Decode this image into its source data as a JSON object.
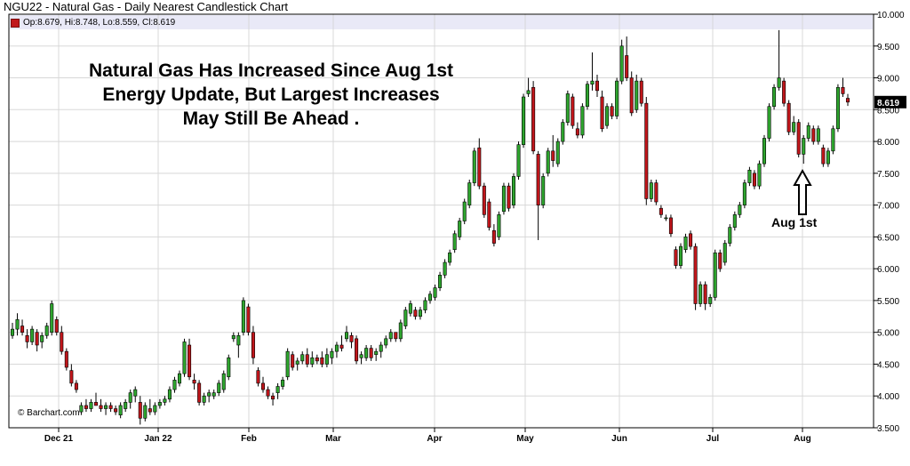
{
  "chart_title": "NGU22 - Natural Gas - Daily Nearest Candlestick Chart",
  "legend_text": "Op:8.679, Hi:8.748, Lo:8.559, Cl:8.619",
  "headline": [
    "Natural Gas Has Increased Since Aug 1st",
    "Energy Update, But Largest Increases",
    "May Still Be Ahead ."
  ],
  "annotation_label": "Aug 1st",
  "credit": "© Barchart.com",
  "last_price_label": "8.619",
  "colors": {
    "up": "#2ea52e",
    "down": "#c0161b",
    "grid": "#d8d8d8",
    "legend_band": "#e9e9f7",
    "price_tag": "#000000"
  },
  "chart_data": {
    "type": "candlestick",
    "title": "NGU22 - Natural Gas - Daily Nearest Candlestick Chart",
    "ylim": [
      3.5,
      10.0
    ],
    "y_ticks": [
      "3.500",
      "4.000",
      "4.500",
      "5.000",
      "5.500",
      "6.000",
      "6.500",
      "7.000",
      "7.500",
      "8.000",
      "8.500",
      "9.000",
      "9.500",
      "10.000"
    ],
    "x_ticks": [
      "Dec 21",
      "Jan 22",
      "Feb",
      "Mar",
      "Apr",
      "May",
      "Jun",
      "Jul",
      "Aug"
    ],
    "grid": true,
    "last": {
      "open": 8.679,
      "high": 8.748,
      "low": 8.559,
      "close": 8.619
    },
    "annotation": {
      "text": "Aug 1st",
      "arrow": "up",
      "date": "2022-08-01"
    },
    "candles": [
      {
        "o": 4.95,
        "h": 5.15,
        "l": 4.9,
        "c": 5.05
      },
      {
        "o": 5.05,
        "h": 5.3,
        "l": 4.95,
        "c": 5.2
      },
      {
        "o": 5.1,
        "h": 5.2,
        "l": 4.95,
        "c": 5.0
      },
      {
        "o": 4.95,
        "h": 5.05,
        "l": 4.75,
        "c": 4.85
      },
      {
        "o": 4.85,
        "h": 5.1,
        "l": 4.8,
        "c": 5.05
      },
      {
        "o": 5.0,
        "h": 5.05,
        "l": 4.7,
        "c": 4.8
      },
      {
        "o": 4.85,
        "h": 5.0,
        "l": 4.75,
        "c": 4.95
      },
      {
        "o": 4.95,
        "h": 5.15,
        "l": 4.9,
        "c": 5.1
      },
      {
        "o": 5.0,
        "h": 5.5,
        "l": 4.95,
        "c": 5.45
      },
      {
        "o": 5.2,
        "h": 5.25,
        "l": 4.95,
        "c": 5.0
      },
      {
        "o": 5.0,
        "h": 5.1,
        "l": 4.65,
        "c": 4.7
      },
      {
        "o": 4.7,
        "h": 4.75,
        "l": 4.4,
        "c": 4.45
      },
      {
        "o": 4.4,
        "h": 4.5,
        "l": 4.15,
        "c": 4.2
      },
      {
        "o": 4.2,
        "h": 4.25,
        "l": 4.05,
        "c": 4.1
      },
      {
        "o": 3.75,
        "h": 3.9,
        "l": 3.7,
        "c": 3.85
      },
      {
        "o": 3.85,
        "h": 3.95,
        "l": 3.75,
        "c": 3.8
      },
      {
        "o": 3.8,
        "h": 3.95,
        "l": 3.75,
        "c": 3.9
      },
      {
        "o": 3.9,
        "h": 4.05,
        "l": 3.85,
        "c": 3.85
      },
      {
        "o": 3.85,
        "h": 3.95,
        "l": 3.75,
        "c": 3.8
      },
      {
        "o": 3.8,
        "h": 3.9,
        "l": 3.7,
        "c": 3.85
      },
      {
        "o": 3.85,
        "h": 3.9,
        "l": 3.75,
        "c": 3.8
      },
      {
        "o": 3.8,
        "h": 3.85,
        "l": 3.7,
        "c": 3.75
      },
      {
        "o": 3.7,
        "h": 3.9,
        "l": 3.65,
        "c": 3.85
      },
      {
        "o": 3.8,
        "h": 3.95,
        "l": 3.75,
        "c": 3.9
      },
      {
        "o": 3.9,
        "h": 4.1,
        "l": 3.8,
        "c": 4.05
      },
      {
        "o": 4.0,
        "h": 4.15,
        "l": 3.9,
        "c": 4.1
      },
      {
        "o": 3.9,
        "h": 4.0,
        "l": 3.55,
        "c": 3.65
      },
      {
        "o": 3.65,
        "h": 3.9,
        "l": 3.6,
        "c": 3.85
      },
      {
        "o": 3.8,
        "h": 3.95,
        "l": 3.7,
        "c": 3.75
      },
      {
        "o": 3.75,
        "h": 3.9,
        "l": 3.7,
        "c": 3.85
      },
      {
        "o": 3.85,
        "h": 3.95,
        "l": 3.8,
        "c": 3.9
      },
      {
        "o": 3.9,
        "h": 4.0,
        "l": 3.85,
        "c": 3.95
      },
      {
        "o": 3.95,
        "h": 4.15,
        "l": 3.9,
        "c": 4.1
      },
      {
        "o": 4.1,
        "h": 4.3,
        "l": 4.05,
        "c": 4.25
      },
      {
        "o": 4.2,
        "h": 4.4,
        "l": 4.15,
        "c": 4.35
      },
      {
        "o": 4.35,
        "h": 4.9,
        "l": 4.3,
        "c": 4.85
      },
      {
        "o": 4.8,
        "h": 4.9,
        "l": 4.25,
        "c": 4.3
      },
      {
        "o": 4.25,
        "h": 4.35,
        "l": 4.1,
        "c": 4.2
      },
      {
        "o": 4.2,
        "h": 4.25,
        "l": 3.85,
        "c": 3.9
      },
      {
        "o": 3.9,
        "h": 4.05,
        "l": 3.85,
        "c": 4.0
      },
      {
        "o": 4.0,
        "h": 4.1,
        "l": 3.9,
        "c": 4.05
      },
      {
        "o": 4.0,
        "h": 4.1,
        "l": 3.95,
        "c": 4.05
      },
      {
        "o": 4.05,
        "h": 4.25,
        "l": 4.0,
        "c": 4.2
      },
      {
        "o": 4.1,
        "h": 4.4,
        "l": 4.05,
        "c": 4.35
      },
      {
        "o": 4.3,
        "h": 4.65,
        "l": 4.25,
        "c": 4.6
      },
      {
        "o": 4.9,
        "h": 5.0,
        "l": 4.85,
        "c": 4.95
      },
      {
        "o": 4.8,
        "h": 5.0,
        "l": 4.6,
        "c": 4.95
      },
      {
        "o": 5.0,
        "h": 5.55,
        "l": 4.95,
        "c": 5.5
      },
      {
        "o": 5.4,
        "h": 5.45,
        "l": 4.95,
        "c": 5.0
      },
      {
        "o": 5.0,
        "h": 5.1,
        "l": 4.5,
        "c": 4.6
      },
      {
        "o": 4.4,
        "h": 4.45,
        "l": 4.15,
        "c": 4.2
      },
      {
        "o": 4.2,
        "h": 4.3,
        "l": 4.05,
        "c": 4.1
      },
      {
        "o": 4.1,
        "h": 4.15,
        "l": 3.95,
        "c": 4.0
      },
      {
        "o": 4.0,
        "h": 4.05,
        "l": 3.85,
        "c": 3.95
      },
      {
        "o": 4.05,
        "h": 4.2,
        "l": 3.95,
        "c": 4.15
      },
      {
        "o": 4.15,
        "h": 4.3,
        "l": 4.1,
        "c": 4.25
      },
      {
        "o": 4.3,
        "h": 4.75,
        "l": 4.25,
        "c": 4.7
      },
      {
        "o": 4.65,
        "h": 4.7,
        "l": 4.4,
        "c": 4.45
      },
      {
        "o": 4.5,
        "h": 4.6,
        "l": 4.4,
        "c": 4.55
      },
      {
        "o": 4.55,
        "h": 4.7,
        "l": 4.5,
        "c": 4.65
      },
      {
        "o": 4.65,
        "h": 4.75,
        "l": 4.45,
        "c": 4.5
      },
      {
        "o": 4.5,
        "h": 4.7,
        "l": 4.45,
        "c": 4.6
      },
      {
        "o": 4.6,
        "h": 4.65,
        "l": 4.5,
        "c": 4.55
      },
      {
        "o": 4.6,
        "h": 4.7,
        "l": 4.45,
        "c": 4.5
      },
      {
        "o": 4.5,
        "h": 4.75,
        "l": 4.45,
        "c": 4.65
      },
      {
        "o": 4.6,
        "h": 4.75,
        "l": 4.5,
        "c": 4.7
      },
      {
        "o": 4.7,
        "h": 4.85,
        "l": 4.6,
        "c": 4.8
      },
      {
        "o": 4.8,
        "h": 4.95,
        "l": 4.7,
        "c": 4.75
      },
      {
        "o": 4.9,
        "h": 5.1,
        "l": 4.85,
        "c": 5.0
      },
      {
        "o": 4.95,
        "h": 5.0,
        "l": 4.75,
        "c": 4.85
      },
      {
        "o": 4.9,
        "h": 4.95,
        "l": 4.5,
        "c": 4.55
      },
      {
        "o": 4.6,
        "h": 4.7,
        "l": 4.5,
        "c": 4.65
      },
      {
        "o": 4.6,
        "h": 4.8,
        "l": 4.55,
        "c": 4.75
      },
      {
        "o": 4.75,
        "h": 4.8,
        "l": 4.55,
        "c": 4.6
      },
      {
        "o": 4.65,
        "h": 4.75,
        "l": 4.55,
        "c": 4.7
      },
      {
        "o": 4.7,
        "h": 4.85,
        "l": 4.6,
        "c": 4.8
      },
      {
        "o": 4.8,
        "h": 4.95,
        "l": 4.75,
        "c": 4.9
      },
      {
        "o": 4.9,
        "h": 5.05,
        "l": 4.85,
        "c": 5.0
      },
      {
        "o": 5.0,
        "h": 5.0,
        "l": 4.85,
        "c": 4.9
      },
      {
        "o": 4.9,
        "h": 5.2,
        "l": 4.85,
        "c": 5.15
      },
      {
        "o": 5.1,
        "h": 5.4,
        "l": 5.05,
        "c": 5.35
      },
      {
        "o": 5.3,
        "h": 5.5,
        "l": 5.25,
        "c": 5.45
      },
      {
        "o": 5.35,
        "h": 5.4,
        "l": 5.2,
        "c": 5.25
      },
      {
        "o": 5.25,
        "h": 5.4,
        "l": 5.2,
        "c": 5.35
      },
      {
        "o": 5.35,
        "h": 5.55,
        "l": 5.3,
        "c": 5.5
      },
      {
        "o": 5.5,
        "h": 5.65,
        "l": 5.45,
        "c": 5.6
      },
      {
        "o": 5.55,
        "h": 5.75,
        "l": 5.5,
        "c": 5.7
      },
      {
        "o": 5.7,
        "h": 5.95,
        "l": 5.65,
        "c": 5.9
      },
      {
        "o": 5.9,
        "h": 6.15,
        "l": 5.85,
        "c": 6.1
      },
      {
        "o": 6.1,
        "h": 6.3,
        "l": 6.05,
        "c": 6.25
      },
      {
        "o": 6.3,
        "h": 6.6,
        "l": 6.25,
        "c": 6.55
      },
      {
        "o": 6.5,
        "h": 6.8,
        "l": 6.45,
        "c": 6.75
      },
      {
        "o": 6.75,
        "h": 7.1,
        "l": 6.7,
        "c": 7.05
      },
      {
        "o": 7.0,
        "h": 7.4,
        "l": 6.95,
        "c": 7.35
      },
      {
        "o": 7.35,
        "h": 7.9,
        "l": 7.3,
        "c": 7.85
      },
      {
        "o": 7.9,
        "h": 8.05,
        "l": 7.25,
        "c": 7.3
      },
      {
        "o": 7.3,
        "h": 7.35,
        "l": 6.8,
        "c": 6.85
      },
      {
        "o": 7.05,
        "h": 7.1,
        "l": 6.6,
        "c": 6.65
      },
      {
        "o": 6.6,
        "h": 6.7,
        "l": 6.35,
        "c": 6.4
      },
      {
        "o": 6.5,
        "h": 6.9,
        "l": 6.45,
        "c": 6.85
      },
      {
        "o": 6.9,
        "h": 7.35,
        "l": 6.85,
        "c": 7.3
      },
      {
        "o": 7.3,
        "h": 7.35,
        "l": 6.9,
        "c": 6.95
      },
      {
        "o": 7.0,
        "h": 7.5,
        "l": 6.95,
        "c": 7.45
      },
      {
        "o": 7.45,
        "h": 8.0,
        "l": 7.4,
        "c": 7.95
      },
      {
        "o": 7.95,
        "h": 8.75,
        "l": 7.9,
        "c": 8.7
      },
      {
        "o": 8.75,
        "h": 9.0,
        "l": 8.7,
        "c": 8.8
      },
      {
        "o": 8.85,
        "h": 8.95,
        "l": 7.8,
        "c": 7.85
      },
      {
        "o": 7.8,
        "h": 7.85,
        "l": 6.45,
        "c": 7.0
      },
      {
        "o": 7.0,
        "h": 7.5,
        "l": 6.95,
        "c": 7.45
      },
      {
        "o": 7.5,
        "h": 7.9,
        "l": 7.45,
        "c": 7.85
      },
      {
        "o": 7.85,
        "h": 8.1,
        "l": 7.6,
        "c": 7.7
      },
      {
        "o": 7.65,
        "h": 8.05,
        "l": 7.6,
        "c": 8.0
      },
      {
        "o": 8.0,
        "h": 8.35,
        "l": 7.95,
        "c": 8.3
      },
      {
        "o": 8.3,
        "h": 8.8,
        "l": 8.25,
        "c": 8.75
      },
      {
        "o": 8.7,
        "h": 8.75,
        "l": 8.2,
        "c": 8.25
      },
      {
        "o": 8.2,
        "h": 8.3,
        "l": 8.05,
        "c": 8.1
      },
      {
        "o": 8.1,
        "h": 8.6,
        "l": 8.05,
        "c": 8.55
      },
      {
        "o": 8.55,
        "h": 8.95,
        "l": 8.5,
        "c": 8.9
      },
      {
        "o": 8.9,
        "h": 9.4,
        "l": 8.8,
        "c": 8.95
      },
      {
        "o": 8.95,
        "h": 9.05,
        "l": 8.7,
        "c": 8.8
      },
      {
        "o": 8.7,
        "h": 8.8,
        "l": 8.15,
        "c": 8.2
      },
      {
        "o": 8.25,
        "h": 8.6,
        "l": 8.2,
        "c": 8.55
      },
      {
        "o": 8.55,
        "h": 8.6,
        "l": 8.35,
        "c": 8.4
      },
      {
        "o": 8.4,
        "h": 9.0,
        "l": 8.35,
        "c": 8.95
      },
      {
        "o": 8.95,
        "h": 9.6,
        "l": 8.9,
        "c": 9.5
      },
      {
        "o": 9.35,
        "h": 9.65,
        "l": 8.95,
        "c": 9.0
      },
      {
        "o": 9.0,
        "h": 9.1,
        "l": 8.4,
        "c": 8.45
      },
      {
        "o": 8.5,
        "h": 9.05,
        "l": 8.45,
        "c": 8.95
      },
      {
        "o": 8.95,
        "h": 9.0,
        "l": 8.55,
        "c": 8.6
      },
      {
        "o": 8.6,
        "h": 8.7,
        "l": 7.0,
        "c": 7.1
      },
      {
        "o": 7.1,
        "h": 7.4,
        "l": 7.05,
        "c": 7.35
      },
      {
        "o": 7.35,
        "h": 7.4,
        "l": 7.0,
        "c": 7.05
      },
      {
        "o": 6.95,
        "h": 7.0,
        "l": 6.8,
        "c": 6.85
      },
      {
        "o": 6.8,
        "h": 6.85,
        "l": 6.75,
        "c": 6.8
      },
      {
        "o": 6.8,
        "h": 6.85,
        "l": 6.5,
        "c": 6.55
      },
      {
        "o": 6.3,
        "h": 6.35,
        "l": 6.0,
        "c": 6.05
      },
      {
        "o": 6.05,
        "h": 6.4,
        "l": 6.0,
        "c": 6.35
      },
      {
        "o": 6.3,
        "h": 6.55,
        "l": 6.25,
        "c": 6.5
      },
      {
        "o": 6.55,
        "h": 6.6,
        "l": 6.3,
        "c": 6.35
      },
      {
        "o": 6.35,
        "h": 6.4,
        "l": 5.35,
        "c": 5.45
      },
      {
        "o": 5.45,
        "h": 5.8,
        "l": 5.4,
        "c": 5.75
      },
      {
        "o": 5.75,
        "h": 5.8,
        "l": 5.35,
        "c": 5.45
      },
      {
        "o": 5.45,
        "h": 5.6,
        "l": 5.4,
        "c": 5.55
      },
      {
        "o": 5.55,
        "h": 6.3,
        "l": 5.5,
        "c": 6.25
      },
      {
        "o": 6.25,
        "h": 6.3,
        "l": 5.95,
        "c": 6.0
      },
      {
        "o": 6.1,
        "h": 6.45,
        "l": 6.05,
        "c": 6.4
      },
      {
        "o": 6.4,
        "h": 6.7,
        "l": 6.35,
        "c": 6.65
      },
      {
        "o": 6.65,
        "h": 6.9,
        "l": 6.6,
        "c": 6.85
      },
      {
        "o": 6.85,
        "h": 7.05,
        "l": 6.8,
        "c": 7.0
      },
      {
        "o": 7.0,
        "h": 7.4,
        "l": 6.95,
        "c": 7.35
      },
      {
        "o": 7.35,
        "h": 7.6,
        "l": 7.3,
        "c": 7.55
      },
      {
        "o": 7.5,
        "h": 7.55,
        "l": 7.25,
        "c": 7.3
      },
      {
        "o": 7.3,
        "h": 7.7,
        "l": 7.25,
        "c": 7.65
      },
      {
        "o": 7.65,
        "h": 8.1,
        "l": 7.6,
        "c": 8.05
      },
      {
        "o": 8.05,
        "h": 8.6,
        "l": 8.0,
        "c": 8.55
      },
      {
        "o": 8.55,
        "h": 8.9,
        "l": 8.5,
        "c": 8.85
      },
      {
        "o": 8.85,
        "h": 9.75,
        "l": 8.8,
        "c": 9.0
      },
      {
        "o": 8.95,
        "h": 9.0,
        "l": 8.55,
        "c": 8.6
      },
      {
        "o": 8.6,
        "h": 8.65,
        "l": 8.1,
        "c": 8.15
      },
      {
        "o": 8.15,
        "h": 8.4,
        "l": 8.1,
        "c": 8.3
      },
      {
        "o": 8.3,
        "h": 8.35,
        "l": 7.75,
        "c": 7.8
      },
      {
        "o": 7.8,
        "h": 8.1,
        "l": 7.65,
        "c": 8.05
      },
      {
        "o": 8.05,
        "h": 8.3,
        "l": 8.0,
        "c": 8.25
      },
      {
        "o": 8.2,
        "h": 8.25,
        "l": 7.95,
        "c": 8.0
      },
      {
        "o": 8.0,
        "h": 8.25,
        "l": 7.95,
        "c": 8.2
      },
      {
        "o": 7.9,
        "h": 7.95,
        "l": 7.6,
        "c": 7.65
      },
      {
        "o": 7.65,
        "h": 7.9,
        "l": 7.6,
        "c": 7.85
      },
      {
        "o": 7.85,
        "h": 8.25,
        "l": 7.8,
        "c": 8.2
      },
      {
        "o": 8.2,
        "h": 8.9,
        "l": 8.15,
        "c": 8.85
      },
      {
        "o": 8.85,
        "h": 9.0,
        "l": 8.7,
        "c": 8.75
      },
      {
        "o": 8.679,
        "h": 8.748,
        "l": 8.559,
        "c": 8.619
      }
    ]
  }
}
